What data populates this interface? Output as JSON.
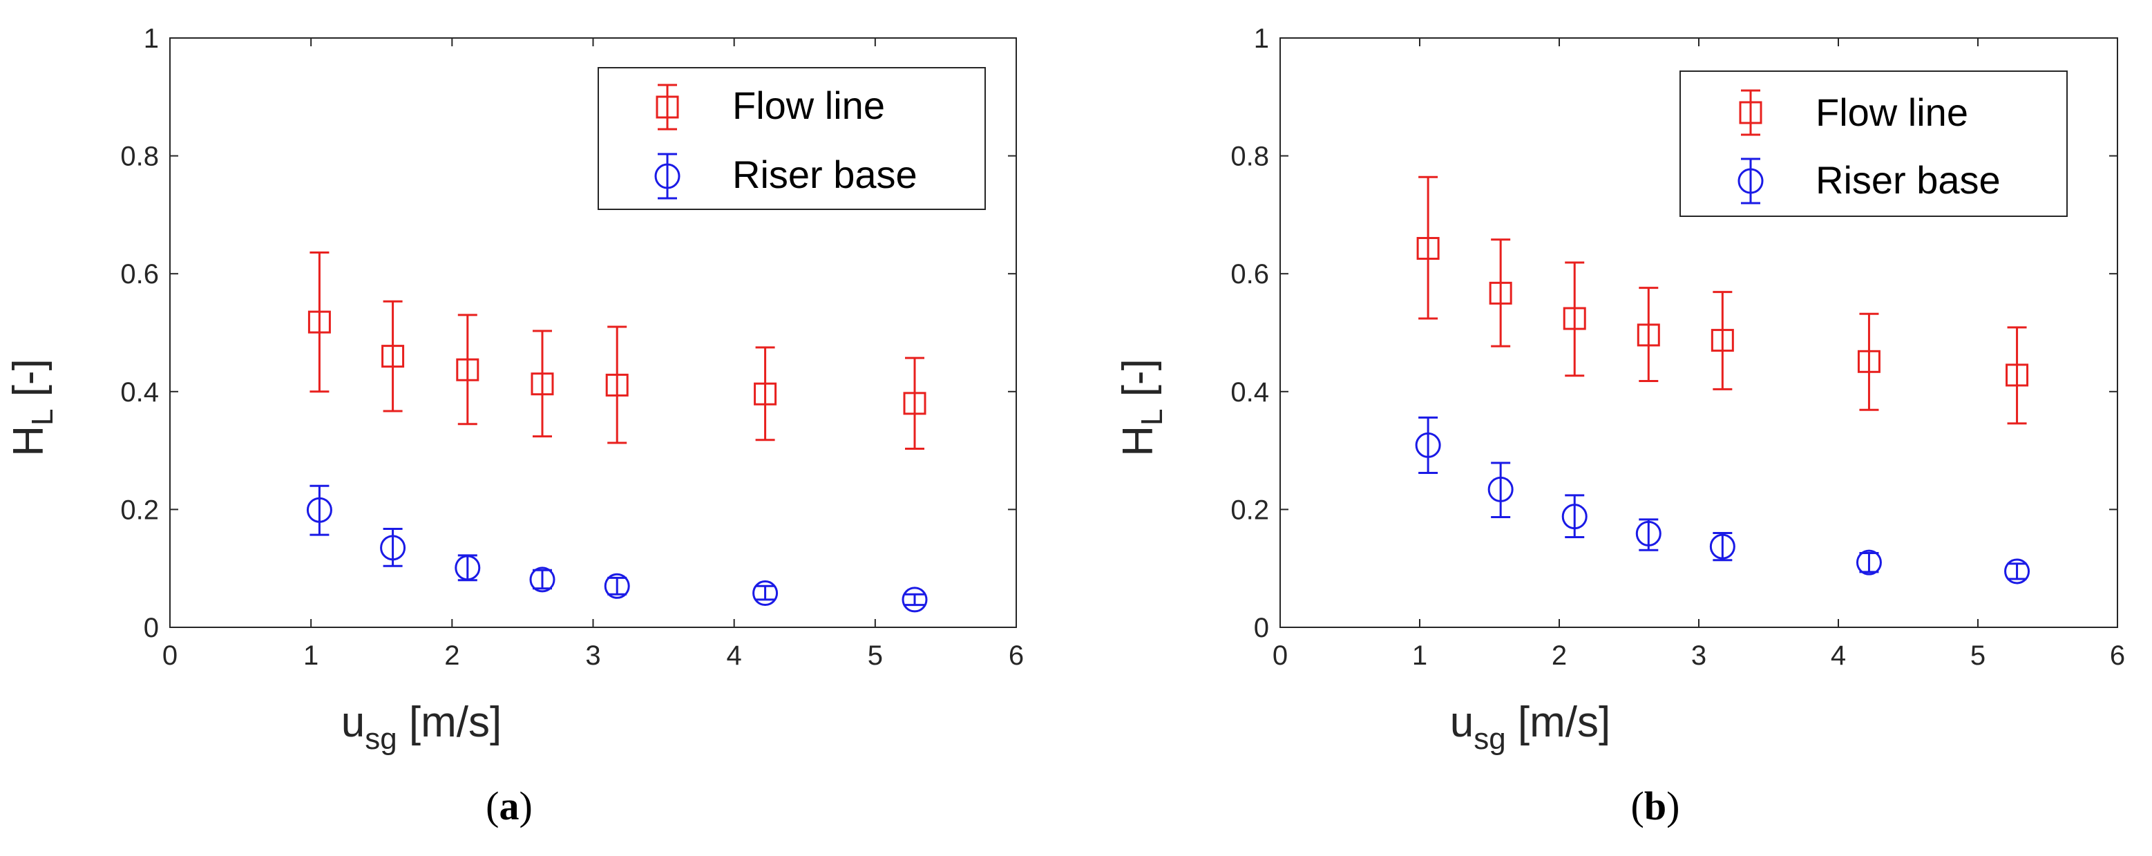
{
  "chart_data": [
    {
      "type": "scatter",
      "panel_label": {
        "open": "(",
        "letter": "a",
        "close": ")"
      },
      "title": "",
      "xlabel": {
        "main": "u",
        "sub": "sg",
        "unit": " [m/s]"
      },
      "ylabel": {
        "main": "H",
        "sub": "L",
        "unit": " [-]"
      },
      "xlim": [
        0,
        6
      ],
      "ylim": [
        0,
        1
      ],
      "xticks": [
        "0",
        "1",
        "2",
        "3",
        "4",
        "5",
        "6"
      ],
      "yticks": [
        "0",
        "0.2",
        "0.4",
        "0.6",
        "0.8",
        "1"
      ],
      "grid": false,
      "legend_position": "top-right",
      "series": [
        {
          "name": "Flow line",
          "marker": "square",
          "color": "#e8201e",
          "x": [
            1.06,
            1.58,
            2.11,
            2.64,
            3.17,
            4.22,
            5.28
          ],
          "y": [
            0.518,
            0.46,
            0.437,
            0.413,
            0.411,
            0.396,
            0.38
          ],
          "err_low": [
            0.4,
            0.367,
            0.345,
            0.324,
            0.313,
            0.318,
            0.303
          ],
          "err_high": [
            0.636,
            0.553,
            0.53,
            0.503,
            0.51,
            0.475,
            0.457
          ]
        },
        {
          "name": "Riser base",
          "marker": "circle",
          "color": "#1a1ae6",
          "x": [
            1.06,
            1.58,
            2.11,
            2.64,
            3.17,
            4.22,
            5.28
          ],
          "y": [
            0.199,
            0.135,
            0.101,
            0.081,
            0.07,
            0.058,
            0.047
          ],
          "err_low": [
            0.157,
            0.104,
            0.08,
            0.066,
            0.056,
            0.047,
            0.038
          ],
          "err_high": [
            0.24,
            0.167,
            0.122,
            0.097,
            0.084,
            0.07,
            0.056
          ]
        }
      ]
    },
    {
      "type": "scatter",
      "panel_label": {
        "open": "(",
        "letter": "b",
        "close": ")"
      },
      "title": "",
      "xlabel": {
        "main": "u",
        "sub": "sg",
        "unit": " [m/s]"
      },
      "ylabel": {
        "main": "H",
        "sub": "L",
        "unit": " [-]"
      },
      "xlim": [
        0,
        6
      ],
      "ylim": [
        0,
        1
      ],
      "xticks": [
        "0",
        "1",
        "2",
        "3",
        "4",
        "5",
        "6"
      ],
      "yticks": [
        "0",
        "0.2",
        "0.4",
        "0.6",
        "0.8",
        "1"
      ],
      "grid": false,
      "legend_position": "top-right",
      "series": [
        {
          "name": "Flow line",
          "marker": "square",
          "color": "#e8201e",
          "x": [
            1.06,
            1.58,
            2.11,
            2.64,
            3.17,
            4.22,
            5.28
          ],
          "y": [
            0.643,
            0.567,
            0.524,
            0.496,
            0.487,
            0.451,
            0.428
          ],
          "err_low": [
            0.524,
            0.477,
            0.427,
            0.418,
            0.404,
            0.369,
            0.346
          ],
          "err_high": [
            0.764,
            0.658,
            0.619,
            0.576,
            0.569,
            0.532,
            0.509
          ]
        },
        {
          "name": "Riser base",
          "marker": "circle",
          "color": "#1a1ae6",
          "x": [
            1.06,
            1.58,
            2.11,
            2.64,
            3.17,
            4.22,
            5.28
          ],
          "y": [
            0.309,
            0.234,
            0.188,
            0.159,
            0.137,
            0.11,
            0.095
          ],
          "err_low": [
            0.262,
            0.187,
            0.153,
            0.131,
            0.114,
            0.094,
            0.082
          ],
          "err_high": [
            0.356,
            0.279,
            0.224,
            0.183,
            0.16,
            0.126,
            0.108
          ]
        }
      ]
    }
  ]
}
